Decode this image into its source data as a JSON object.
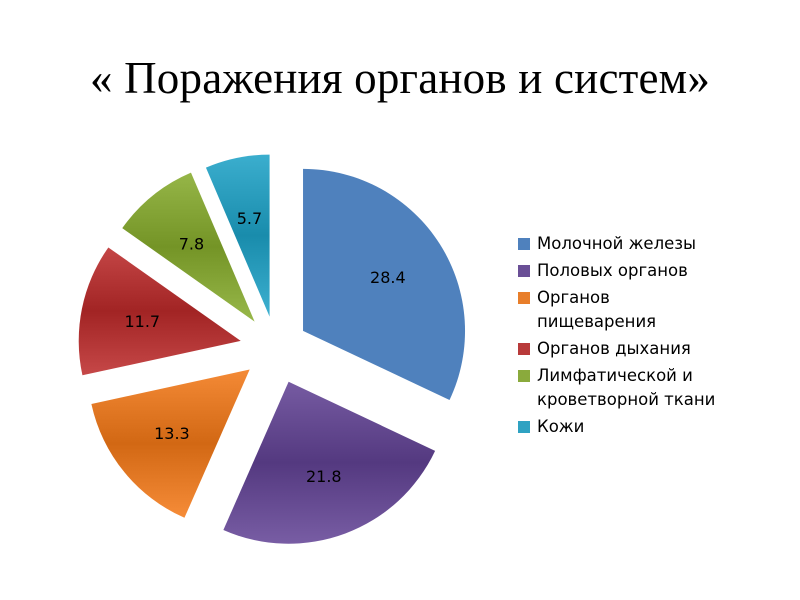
{
  "slide": {
    "title": "« Поражения органов и систем»"
  },
  "chart_data": {
    "type": "pie",
    "title": "« Поражения органов и систем»",
    "exploded": true,
    "legend_position": "right",
    "categories": [
      "Молочной железы",
      "Половых органов",
      "Органов пищеварения",
      "Органов дыхания",
      "Лимфатической и кроветворной ткани",
      "Кожи"
    ],
    "values": [
      28.4,
      21.8,
      13.3,
      11.7,
      7.8,
      5.7
    ],
    "data_labels": [
      "28.4",
      "21.8",
      "13.3",
      "11.7",
      "7.8",
      "5.7"
    ],
    "colors": [
      "#4f81bd",
      "#6a4f96",
      "#e87e2a",
      "#b83a3a",
      "#8aaa3c",
      "#2fa2c2"
    ]
  },
  "legend": {
    "items": [
      {
        "label": "Молочной железы",
        "color": "#4f81bd"
      },
      {
        "label": "Половых органов",
        "color": "#6a4f96"
      },
      {
        "label": "Органов пищеварения",
        "color": "#e87e2a"
      },
      {
        "label": "Органов дыхания",
        "color": "#b83a3a"
      },
      {
        "label": "Лимфатической и кроветворной ткани",
        "color": "#8aaa3c"
      },
      {
        "label": "Кожи",
        "color": "#2fa2c2"
      }
    ]
  }
}
